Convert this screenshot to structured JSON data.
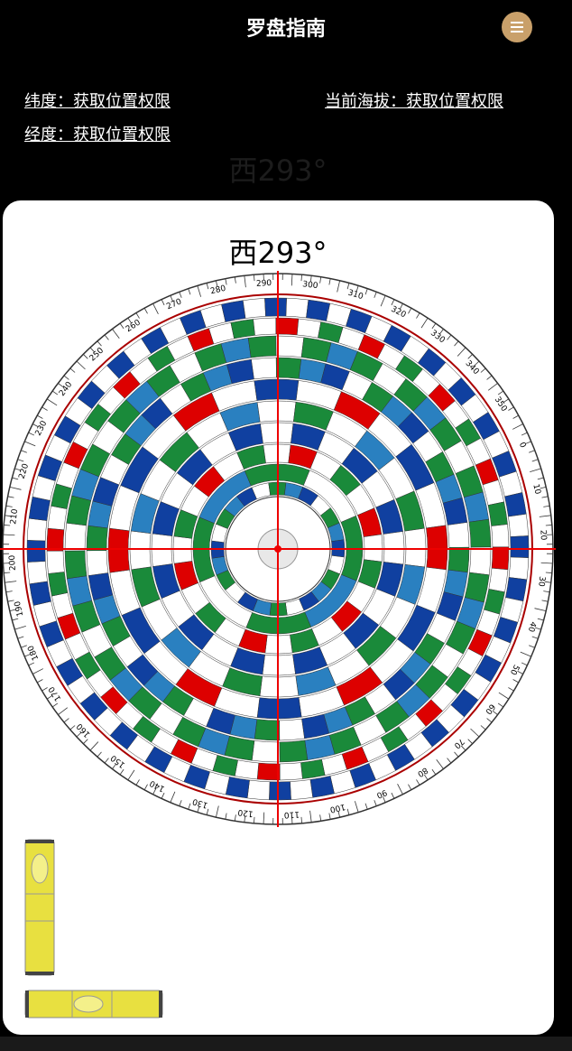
{
  "header": {
    "title": "罗盘指南"
  },
  "location": {
    "latitude": "纬度：获取位置权限",
    "altitude": "当前海拔：获取位置权限",
    "longitude": "经度：获取位置权限"
  },
  "heading": {
    "value": 293,
    "label": "西293°"
  },
  "compass": {
    "degree_labels": [
      0,
      10,
      20,
      30,
      40,
      50,
      60,
      70,
      80,
      90,
      100,
      110,
      120,
      130,
      140,
      150,
      160,
      170,
      180,
      190,
      200,
      210,
      220,
      230,
      240,
      250,
      260,
      270,
      280,
      290,
      300,
      310,
      320,
      330,
      340,
      350
    ]
  }
}
